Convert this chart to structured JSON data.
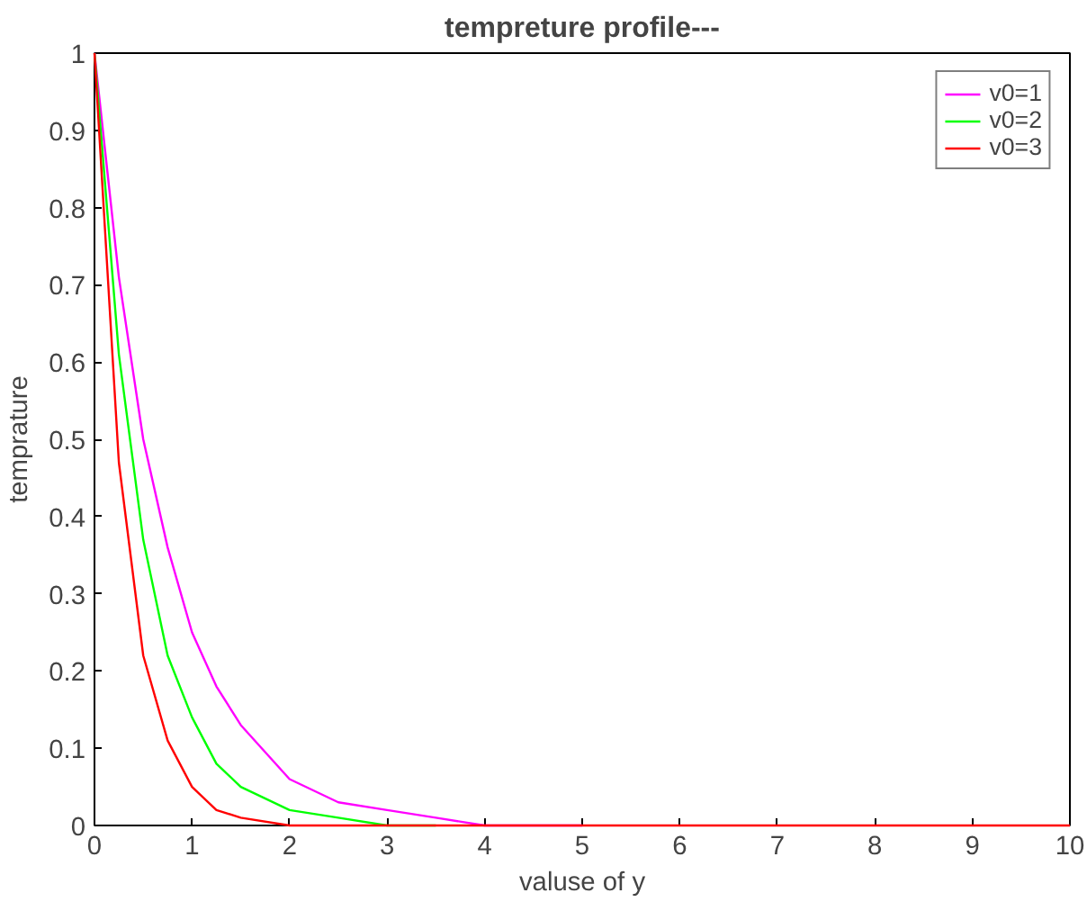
{
  "chart_data": {
    "type": "line",
    "title": "tempreture profile---",
    "xlabel": "valuse of y",
    "ylabel": "temprature",
    "x": [
      0,
      0.25,
      0.5,
      0.75,
      1,
      1.25,
      1.5,
      2,
      2.5,
      3,
      3.5,
      4,
      5,
      6,
      8,
      10
    ],
    "series": [
      {
        "name": "v0=1",
        "color": "#ff00ff",
        "values": [
          1,
          0.71,
          0.5,
          0.36,
          0.25,
          0.18,
          0.13,
          0.06,
          0.03,
          0.02,
          0.01,
          0,
          0,
          null,
          null,
          null
        ]
      },
      {
        "name": "v0=2",
        "color": "#00ff00",
        "values": [
          1,
          0.61,
          0.37,
          0.22,
          0.14,
          0.08,
          0.05,
          0.02,
          0.01,
          0,
          0,
          null,
          null,
          null,
          null,
          null
        ]
      },
      {
        "name": "v0=3",
        "color": "#ff0000",
        "values": [
          1,
          0.47,
          0.22,
          0.11,
          0.05,
          0.02,
          0.01,
          0,
          0,
          0,
          0,
          0,
          0,
          0,
          0,
          0
        ]
      }
    ],
    "xlim": [
      0,
      10
    ],
    "xticks": [
      0,
      1,
      2,
      3,
      4,
      5,
      6,
      7,
      8,
      9,
      10
    ],
    "ylim": [
      0,
      1
    ],
    "yticks": [
      0,
      0.1,
      0.2,
      0.3,
      0.4,
      0.5,
      0.6,
      0.7,
      0.8,
      0.9,
      1
    ],
    "grid": false,
    "legend": "top right",
    "marker": "none",
    "line_style": "solid"
  }
}
